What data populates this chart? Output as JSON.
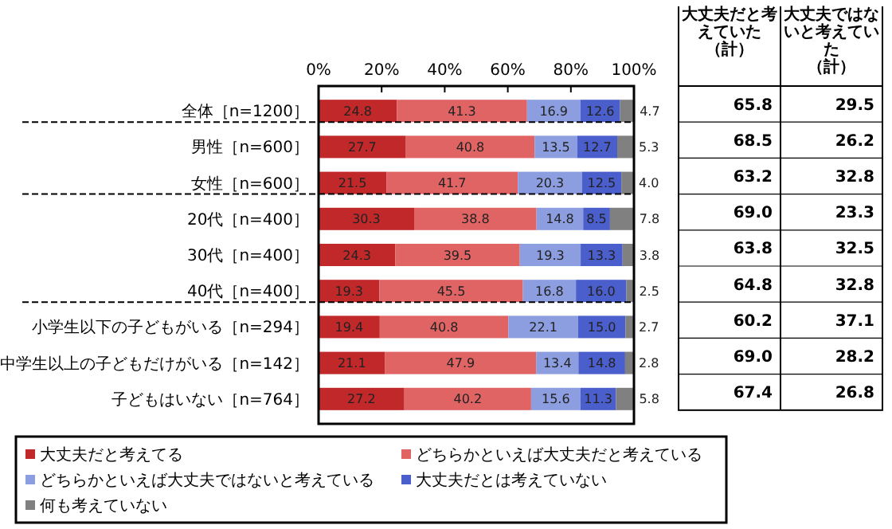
{
  "chart_data": {
    "type": "bar",
    "orientation": "horizontal",
    "stacked": true,
    "legend": "bottom",
    "grid": false,
    "categories": [
      "全体［n=1200］",
      "男性［n=600］",
      "女性［n=600］",
      "20代［n=400］",
      "30代［n=400］",
      "40代［n=400］",
      "小学生以下の子どもがいる［n=294］",
      "中学生以上の子どもだけがいる［n=142］",
      "子どもはいない［n=764］"
    ],
    "xlim": [
      0,
      100
    ],
    "xticks": [
      {
        "value": 0,
        "label": "0%"
      },
      {
        "value": 20,
        "label": "20%"
      },
      {
        "value": 40,
        "label": "40%"
      },
      {
        "value": 60,
        "label": "60%"
      },
      {
        "value": 80,
        "label": "80%"
      },
      {
        "value": 100,
        "label": "100%"
      }
    ],
    "series": [
      {
        "name": "大丈夫だと考えてる",
        "color": "#c0282a",
        "values": [
          24.8,
          27.7,
          21.5,
          30.3,
          24.3,
          19.3,
          19.4,
          21.1,
          27.2
        ],
        "value_labels": [
          "24.8",
          "27.7",
          "21.5",
          "30.3",
          "24.3",
          "19.3",
          "19.4",
          "21.1",
          "27.2"
        ]
      },
      {
        "name": "どちらかといえば大丈夫だと考えている",
        "color": "#e06464",
        "values": [
          41.3,
          40.8,
          41.7,
          38.8,
          39.5,
          45.5,
          40.8,
          47.9,
          40.2
        ],
        "value_labels": [
          "41.3",
          "40.8",
          "41.7",
          "38.8",
          "39.5",
          "45.5",
          "40.8",
          "47.9",
          "40.2"
        ]
      },
      {
        "name": "どちらかといえば大丈夫ではないと考えている",
        "color": "#8c9ee0",
        "values": [
          16.9,
          13.5,
          20.3,
          14.8,
          19.3,
          16.8,
          22.1,
          13.4,
          15.6
        ],
        "value_labels": [
          "16.9",
          "13.5",
          "20.3",
          "14.8",
          "19.3",
          "16.8",
          "22.1",
          "13.4",
          "15.6"
        ]
      },
      {
        "name": "大丈夫だとは考えていない",
        "color": "#4a5ecc",
        "values": [
          12.6,
          12.7,
          12.5,
          8.5,
          13.3,
          16.0,
          15.0,
          14.8,
          11.3
        ],
        "value_labels": [
          "12.6",
          "12.7",
          "12.5",
          "8.5",
          "13.3",
          "16.0",
          "15.0",
          "14.8",
          "11.3"
        ]
      },
      {
        "name": "何も考えていない",
        "color": "#808080",
        "values": [
          4.7,
          5.3,
          4.0,
          7.8,
          3.8,
          2.5,
          2.7,
          2.8,
          5.8
        ],
        "value_labels": [
          "4.7",
          "5.3",
          "4.0",
          "7.8",
          "3.8",
          "2.5",
          "2.7",
          "2.8",
          "5.8"
        ]
      }
    ],
    "annotations": [
      "大丈夫だと考えていた（計）",
      "大丈夫ではないと考えていた（計）",
      "65.8",
      "29.5",
      "68.5",
      "26.2",
      "63.2",
      "32.8",
      "69.0",
      "23.3",
      "63.8",
      "32.5",
      "64.8",
      "32.8",
      "60.2",
      "37.1",
      "69.0",
      "28.2",
      "67.4",
      "26.8"
    ]
  }
}
